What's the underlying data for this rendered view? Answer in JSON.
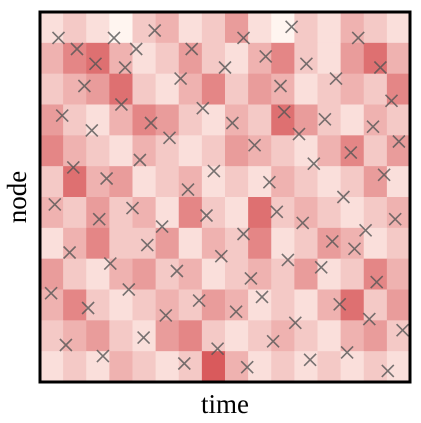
{
  "chart_data": [
    {
      "type": "heatmap",
      "xlabel": "time",
      "ylabel": "node",
      "xlim": [
        0,
        1
      ],
      "ylim": [
        0,
        1
      ],
      "zlim": [
        0,
        1
      ],
      "colormap": [
        "#fff5f0",
        "#c8171c"
      ],
      "z": [
        [
          0.1,
          0.2,
          0.1,
          0.0,
          0.2,
          0.3,
          0.1,
          0.2,
          0.4,
          0.1,
          0.0,
          0.2,
          0.1,
          0.3,
          0.2,
          0.1
        ],
        [
          0.3,
          0.5,
          0.6,
          0.3,
          0.1,
          0.2,
          0.4,
          0.2,
          0.1,
          0.3,
          0.5,
          0.2,
          0.1,
          0.4,
          0.6,
          0.3
        ],
        [
          0.2,
          0.3,
          0.4,
          0.6,
          0.2,
          0.1,
          0.3,
          0.5,
          0.2,
          0.4,
          0.3,
          0.1,
          0.2,
          0.3,
          0.2,
          0.5
        ],
        [
          0.4,
          0.2,
          0.1,
          0.3,
          0.5,
          0.4,
          0.2,
          0.1,
          0.3,
          0.2,
          0.6,
          0.4,
          0.2,
          0.1,
          0.3,
          0.2
        ],
        [
          0.5,
          0.3,
          0.2,
          0.1,
          0.3,
          0.2,
          0.1,
          0.2,
          0.4,
          0.3,
          0.2,
          0.1,
          0.3,
          0.5,
          0.2,
          0.4
        ],
        [
          0.2,
          0.6,
          0.3,
          0.4,
          0.1,
          0.2,
          0.3,
          0.1,
          0.2,
          0.1,
          0.3,
          0.2,
          0.1,
          0.2,
          0.4,
          0.1
        ],
        [
          0.3,
          0.2,
          0.4,
          0.2,
          0.3,
          0.1,
          0.5,
          0.2,
          0.1,
          0.6,
          0.2,
          0.3,
          0.2,
          0.1,
          0.2,
          0.3
        ],
        [
          0.1,
          0.3,
          0.5,
          0.2,
          0.2,
          0.4,
          0.1,
          0.3,
          0.2,
          0.5,
          0.1,
          0.2,
          0.4,
          0.3,
          0.1,
          0.2
        ],
        [
          0.4,
          0.2,
          0.1,
          0.3,
          0.4,
          0.2,
          0.3,
          0.1,
          0.2,
          0.3,
          0.2,
          0.4,
          0.1,
          0.2,
          0.5,
          0.3
        ],
        [
          0.3,
          0.5,
          0.2,
          0.1,
          0.2,
          0.3,
          0.2,
          0.4,
          0.3,
          0.1,
          0.2,
          0.1,
          0.3,
          0.6,
          0.2,
          0.4
        ],
        [
          0.2,
          0.3,
          0.4,
          0.2,
          0.1,
          0.4,
          0.5,
          0.2,
          0.1,
          0.2,
          0.3,
          0.2,
          0.1,
          0.3,
          0.4,
          0.2
        ],
        [
          0.1,
          0.2,
          0.1,
          0.3,
          0.2,
          0.1,
          0.2,
          0.7,
          0.3,
          0.1,
          0.2,
          0.1,
          0.2,
          0.1,
          0.2,
          0.1
        ]
      ]
    },
    {
      "type": "scatter",
      "color": "#555555",
      "xlim": [
        0,
        1
      ],
      "ylim": [
        0,
        1
      ],
      "x": [
        0.05,
        0.1,
        0.15,
        0.2,
        0.23,
        0.26,
        0.12,
        0.31,
        0.38,
        0.41,
        0.5,
        0.55,
        0.61,
        0.68,
        0.72,
        0.65,
        0.8,
        0.86,
        0.92,
        0.95,
        0.06,
        0.14,
        0.22,
        0.3,
        0.35,
        0.44,
        0.52,
        0.58,
        0.66,
        0.7,
        0.77,
        0.84,
        0.9,
        0.97,
        0.09,
        0.18,
        0.27,
        0.4,
        0.47,
        0.62,
        0.74,
        0.82,
        0.93,
        0.04,
        0.16,
        0.25,
        0.33,
        0.45,
        0.55,
        0.64,
        0.71,
        0.79,
        0.88,
        0.96,
        0.08,
        0.19,
        0.29,
        0.37,
        0.49,
        0.57,
        0.67,
        0.76,
        0.85,
        0.91,
        0.03,
        0.13,
        0.24,
        0.34,
        0.43,
        0.53,
        0.6,
        0.69,
        0.81,
        0.89,
        0.98,
        0.07,
        0.17,
        0.28,
        0.39,
        0.48,
        0.56,
        0.63,
        0.73,
        0.83,
        0.94
      ],
      "y": [
        0.93,
        0.9,
        0.86,
        0.93,
        0.85,
        0.9,
        0.8,
        0.95,
        0.82,
        0.9,
        0.85,
        0.93,
        0.88,
        0.96,
        0.86,
        0.8,
        0.82,
        0.93,
        0.85,
        0.76,
        0.72,
        0.68,
        0.75,
        0.7,
        0.66,
        0.74,
        0.7,
        0.64,
        0.73,
        0.67,
        0.71,
        0.62,
        0.69,
        0.65,
        0.58,
        0.55,
        0.6,
        0.52,
        0.57,
        0.54,
        0.59,
        0.5,
        0.56,
        0.48,
        0.44,
        0.47,
        0.42,
        0.45,
        0.4,
        0.46,
        0.43,
        0.38,
        0.41,
        0.44,
        0.35,
        0.32,
        0.37,
        0.3,
        0.34,
        0.28,
        0.33,
        0.31,
        0.36,
        0.27,
        0.24,
        0.2,
        0.25,
        0.18,
        0.22,
        0.19,
        0.23,
        0.16,
        0.21,
        0.17,
        0.14,
        0.1,
        0.07,
        0.12,
        0.05,
        0.09,
        0.04,
        0.11,
        0.06,
        0.08,
        0.03
      ]
    }
  ]
}
